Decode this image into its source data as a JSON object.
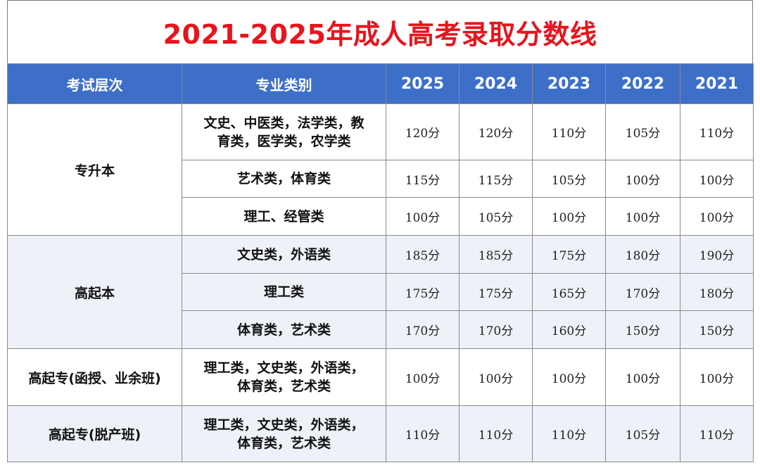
{
  "title": "2021-2025年成人高考录取分数线",
  "headers": {
    "level": "考试层次",
    "category": "专业类别",
    "years": [
      "2025",
      "2024",
      "2023",
      "2022",
      "2021"
    ]
  },
  "groups": [
    {
      "level": "专升本",
      "rows": [
        {
          "category": [
            "文史、中医类，法学类，教",
            "育类，医学类，农学类"
          ],
          "scores": [
            "120分",
            "120分",
            "110分",
            "105分",
            "110分"
          ]
        },
        {
          "category": [
            "艺术类，体育类"
          ],
          "scores": [
            "115分",
            "115分",
            "105分",
            "100分",
            "100分"
          ]
        },
        {
          "category": [
            "理工、经管类"
          ],
          "scores": [
            "100分",
            "105分",
            "100分",
            "100分",
            "100分"
          ]
        }
      ]
    },
    {
      "level": "高起本",
      "rows": [
        {
          "category": [
            "文史类，外语类"
          ],
          "scores": [
            "185分",
            "185分",
            "175分",
            "180分",
            "190分"
          ]
        },
        {
          "category": [
            "理工类"
          ],
          "scores": [
            "175分",
            "175分",
            "165分",
            "170分",
            "180分"
          ]
        },
        {
          "category": [
            "体育类，艺术类"
          ],
          "scores": [
            "170分",
            "170分",
            "160分",
            "150分",
            "150分"
          ]
        }
      ]
    },
    {
      "level": "高起专(函授、业余班)",
      "rows": [
        {
          "category": [
            "理工类，文史类，外语类，",
            "体育类，艺术类"
          ],
          "scores": [
            "100分",
            "100分",
            "100分",
            "100分",
            "100分"
          ]
        }
      ]
    },
    {
      "level": "高起专(脱产班)",
      "rows": [
        {
          "category": [
            "理工类，文史类，外语类，",
            "体育类，艺术类"
          ],
          "scores": [
            "110分",
            "110分",
            "110分",
            "105分",
            "110分"
          ]
        }
      ]
    }
  ]
}
